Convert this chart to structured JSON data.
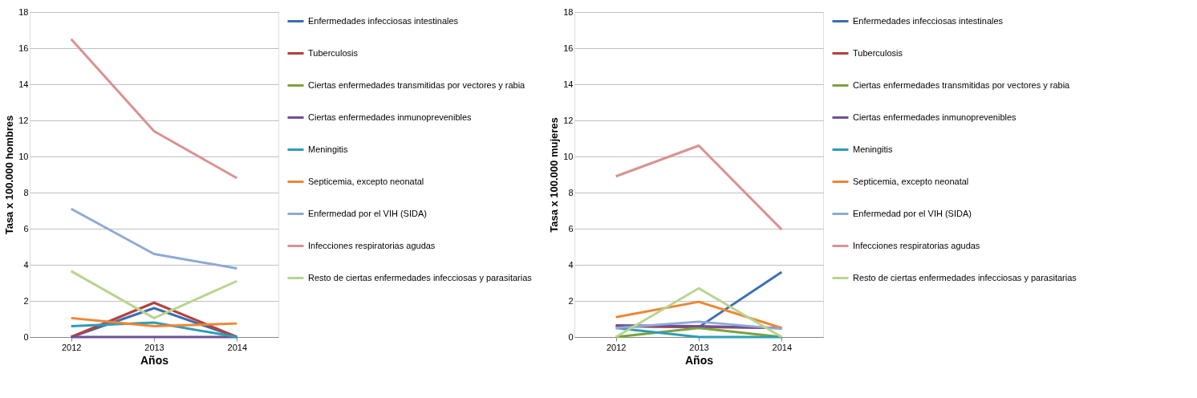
{
  "chart_data": [
    {
      "type": "line",
      "xlabel": "Años",
      "ylabel": "Tasa x 100.000 hombres",
      "categories": [
        "2012",
        "2013",
        "2014"
      ],
      "ylim": [
        0,
        18
      ],
      "yticks": [
        0,
        2,
        4,
        6,
        8,
        10,
        12,
        14,
        16,
        18
      ],
      "grid": "y",
      "legend": "right",
      "marker": "none",
      "line_style": "solid",
      "series": [
        {
          "name": "Enfermedades infecciosas intestinales",
          "color": "#3c6eb4",
          "values": [
            0,
            1.6,
            0
          ]
        },
        {
          "name": "Tuberculosis",
          "color": "#b3413e",
          "values": [
            0,
            1.9,
            0
          ]
        },
        {
          "name": "Ciertas enfermedades transmitidas por vectores y rabia",
          "color": "#7aa33b",
          "values": [
            null,
            null,
            null
          ]
        },
        {
          "name": "Ciertas enfermedades inmunoprevenibles",
          "color": "#6f4f99",
          "values": [
            0,
            0,
            0
          ]
        },
        {
          "name": "Meningitis",
          "color": "#2f9db5",
          "values": [
            0.6,
            0.8,
            0
          ]
        },
        {
          "name": "Septicemia, excepto neonatal",
          "color": "#ef8534",
          "values": [
            1.05,
            0.6,
            0.75
          ]
        },
        {
          "name": "Enfermedad por el VIH (SIDA)",
          "color": "#8eaad6",
          "values": [
            7.1,
            4.6,
            3.8
          ]
        },
        {
          "name": "Infecciones respiratorias agudas",
          "color": "#d99291",
          "values": [
            16.5,
            11.4,
            8.8
          ]
        },
        {
          "name": "Resto de ciertas enfermedades infecciosas y parasitarias",
          "color": "#b9d48e",
          "values": [
            3.65,
            1.05,
            3.1
          ]
        }
      ]
    },
    {
      "type": "line",
      "xlabel": "Años",
      "ylabel": "Tasa x 100.000 mujeres",
      "categories": [
        "2012",
        "2013",
        "2014"
      ],
      "ylim": [
        0,
        18
      ],
      "yticks": [
        0,
        2,
        4,
        6,
        8,
        10,
        12,
        14,
        16,
        18
      ],
      "grid": "y",
      "legend": "right",
      "marker": "none",
      "line_style": "solid",
      "series": [
        {
          "name": "Enfermedades infecciosas intestinales",
          "color": "#3c6eb4",
          "values": [
            0.6,
            0.55,
            3.6
          ]
        },
        {
          "name": "Tuberculosis",
          "color": "#b3413e",
          "values": [
            0.6,
            0.55,
            0.5
          ]
        },
        {
          "name": "Ciertas enfermedades transmitidas por vectores y rabia",
          "color": "#7aa33b",
          "values": [
            0,
            0.5,
            0
          ]
        },
        {
          "name": "Ciertas enfermedades inmunoprevenibles",
          "color": "#6f4f99",
          "values": [
            0.65,
            0.6,
            0.5
          ]
        },
        {
          "name": "Meningitis",
          "color": "#2f9db5",
          "values": [
            0.5,
            0,
            0
          ]
        },
        {
          "name": "Septicemia, excepto neonatal",
          "color": "#ef8534",
          "values": [
            1.1,
            1.95,
            0.5
          ]
        },
        {
          "name": "Enfermedad por el VIH (SIDA)",
          "color": "#8eaad6",
          "values": [
            0.5,
            0.85,
            0.45
          ]
        },
        {
          "name": "Infecciones respiratorias agudas",
          "color": "#d99291",
          "values": [
            8.9,
            10.6,
            5.95
          ]
        },
        {
          "name": "Resto de ciertas enfermedades infecciosas y parasitarias",
          "color": "#b9d48e",
          "values": [
            0,
            2.7,
            0
          ]
        }
      ]
    }
  ]
}
